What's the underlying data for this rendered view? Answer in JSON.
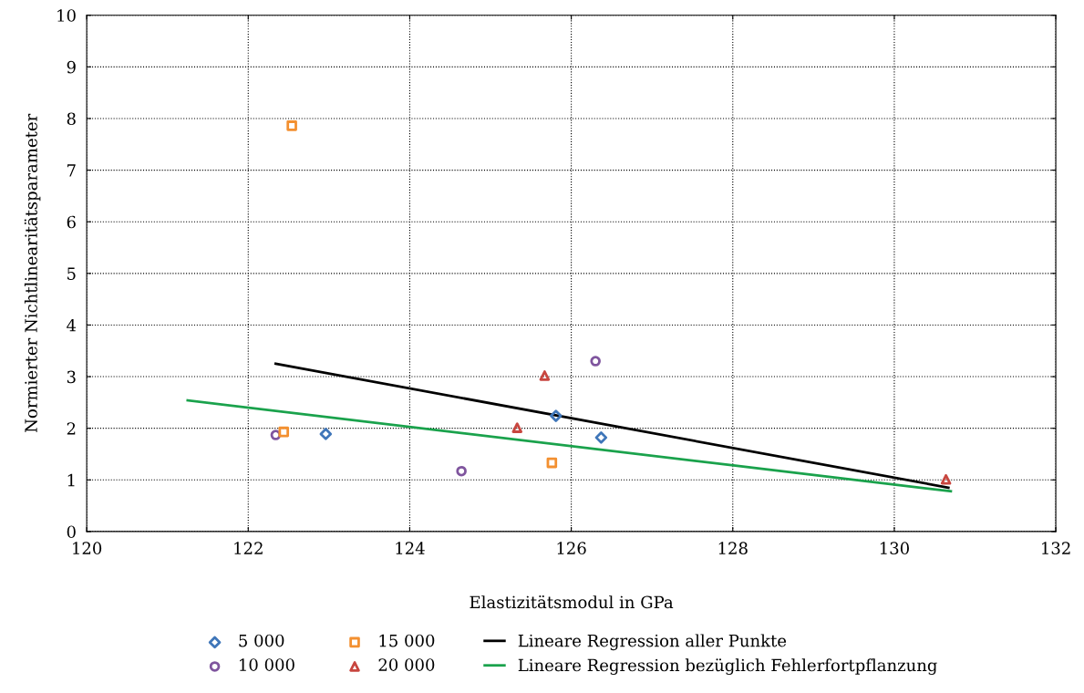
{
  "chart_data": {
    "type": "scatter",
    "xlabel": "Elastizitätsmodul in GPa",
    "ylabel": "Normierter Nichtlinearitätsparameter",
    "xlim": [
      120,
      132
    ],
    "xticks": [
      120,
      122,
      124,
      126,
      128,
      130,
      132
    ],
    "ylim": [
      0,
      10
    ],
    "yticks": [
      0,
      1,
      2,
      3,
      4,
      5,
      6,
      7,
      8,
      9,
      10
    ],
    "grid": true,
    "legend": "bottom",
    "series": [
      {
        "name": "5 000",
        "color": "#3f76b9",
        "marker": "diamond",
        "x": [
          122.96,
          125.81,
          126.37
        ],
        "values": [
          1.89,
          2.24,
          1.82
        ]
      },
      {
        "name": "10 000",
        "color": "#7f559e",
        "marker": "circle",
        "x": [
          122.34,
          124.64,
          126.3
        ],
        "values": [
          1.87,
          1.17,
          3.3
        ]
      },
      {
        "name": "15 000",
        "color": "#f39030",
        "marker": "square",
        "x": [
          122.54,
          122.44,
          125.76
        ],
        "values": [
          7.86,
          1.93,
          1.33
        ]
      },
      {
        "name": "20 000",
        "color": "#c8463f",
        "marker": "triangle",
        "x": [
          125.33,
          125.67,
          130.64
        ],
        "values": [
          2.01,
          3.02,
          1.01
        ]
      },
      {
        "name": "Lineare Regression aller Punkte",
        "type": "line",
        "color": "#000000",
        "marker": "none",
        "x": [
          122.34,
          130.67
        ],
        "values": [
          3.25,
          0.85
        ]
      },
      {
        "name": "Lineare Regression bezüglich Fehlerfortpflanzung",
        "type": "line",
        "color": "#1aa24c",
        "marker": "none",
        "x": [
          121.25,
          130.7
        ],
        "values": [
          2.54,
          0.78
        ]
      }
    ]
  }
}
